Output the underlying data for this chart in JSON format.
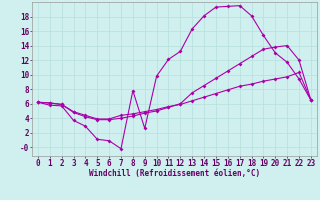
{
  "xlabel": "Windchill (Refroidissement éolien,°C)",
  "background_color": "#cff0ee",
  "grid_color": "#b8e0de",
  "line_color": "#aa00aa",
  "xlim": [
    -0.5,
    23.5
  ],
  "ylim": [
    -1.2,
    20
  ],
  "xticks": [
    0,
    1,
    2,
    3,
    4,
    5,
    6,
    7,
    8,
    9,
    10,
    11,
    12,
    13,
    14,
    15,
    16,
    17,
    18,
    19,
    20,
    21,
    22,
    23
  ],
  "yticks": [
    0,
    2,
    4,
    6,
    8,
    10,
    12,
    14,
    16,
    18
  ],
  "ytick_labels": [
    "-0",
    "2",
    "4",
    "6",
    "8",
    "10",
    "12",
    "14",
    "16",
    "18"
  ],
  "line1_x": [
    0,
    1,
    2,
    3,
    4,
    5,
    6,
    7,
    8,
    9,
    10,
    11,
    12,
    13,
    14,
    15,
    16,
    17,
    18,
    19,
    20,
    21,
    22,
    23
  ],
  "line1_y": [
    6.2,
    5.8,
    5.7,
    3.7,
    2.9,
    1.1,
    0.9,
    -0.2,
    7.8,
    2.6,
    9.8,
    12.1,
    13.2,
    16.3,
    18.1,
    19.3,
    19.4,
    19.5,
    18.1,
    15.4,
    13.0,
    11.7,
    9.4,
    6.5
  ],
  "line2_x": [
    0,
    1,
    2,
    3,
    4,
    5,
    6,
    7,
    8,
    9,
    10,
    11,
    12,
    13,
    14,
    15,
    16,
    17,
    18,
    19,
    20,
    21,
    22,
    23
  ],
  "line2_y": [
    6.2,
    6.1,
    5.9,
    4.9,
    4.4,
    3.9,
    3.9,
    4.4,
    4.6,
    4.9,
    5.2,
    5.6,
    5.9,
    6.4,
    6.9,
    7.4,
    7.9,
    8.4,
    8.7,
    9.1,
    9.4,
    9.7,
    10.3,
    6.5
  ],
  "line3_x": [
    0,
    1,
    2,
    3,
    4,
    5,
    6,
    7,
    8,
    9,
    10,
    11,
    12,
    13,
    14,
    15,
    16,
    17,
    18,
    19,
    20,
    21,
    22,
    23
  ],
  "line3_y": [
    6.2,
    6.1,
    5.9,
    4.8,
    4.2,
    3.8,
    3.8,
    4.0,
    4.3,
    4.7,
    5.0,
    5.5,
    6.0,
    7.5,
    8.5,
    9.5,
    10.5,
    11.5,
    12.5,
    13.5,
    13.8,
    14.0,
    12.0,
    6.5
  ],
  "tick_fontsize": 5.5,
  "xlabel_fontsize": 5.5
}
